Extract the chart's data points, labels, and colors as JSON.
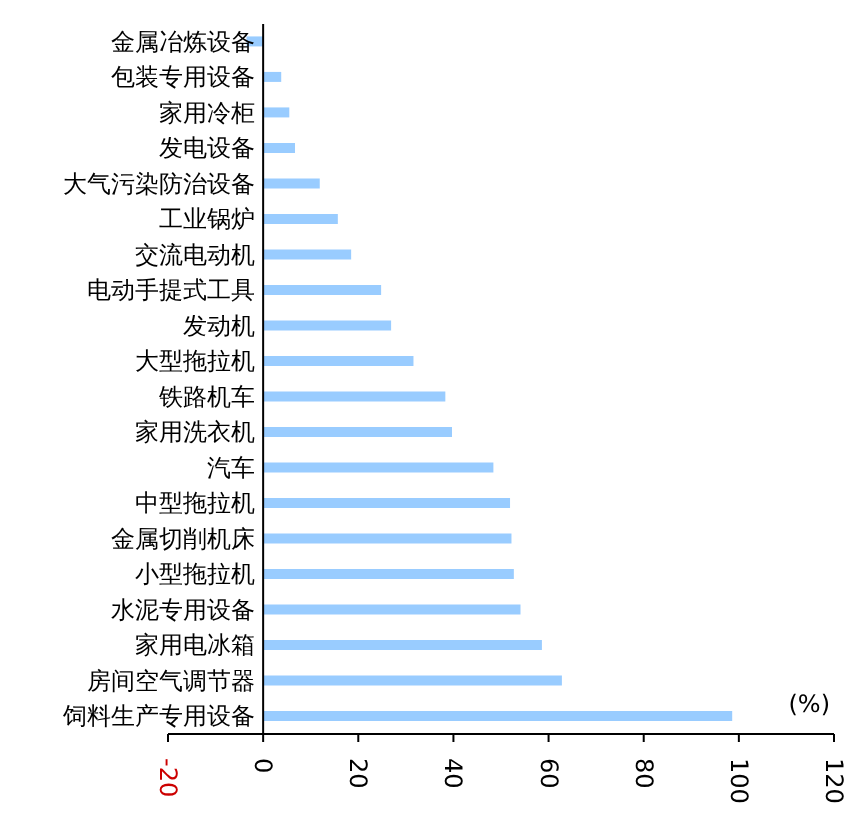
{
  "chart_data": {
    "type": "bar",
    "orientation": "horizontal",
    "xlabel": "(%)",
    "categories": [
      "金属冶炼设备",
      "包装专用设备",
      "家用冷柜",
      "发电设备",
      "大气污染防治设备",
      "工业锅炉",
      "交流电动机",
      "电动手提式工具",
      "发动机",
      "大型拖拉机",
      "铁路机车",
      "家用洗衣机",
      "汽车",
      "中型拖拉机",
      "金属切削机床",
      "小型拖拉机",
      "水泥专用设备",
      "家用电冰箱",
      "房间空气调节器",
      "饲料生产专用设备"
    ],
    "values": [
      -3.5,
      3.8,
      5.5,
      6.7,
      11.9,
      15.7,
      18.5,
      24.8,
      26.9,
      31.6,
      38.3,
      39.7,
      48.4,
      51.9,
      52.2,
      52.7,
      54.1,
      58.6,
      62.8,
      98.6
    ],
    "color": "#99ccff",
    "xlim": [
      -20,
      120
    ],
    "xticks": [
      -20,
      0,
      20,
      40,
      60,
      80,
      100,
      120
    ],
    "grid": false,
    "legend": false
  }
}
